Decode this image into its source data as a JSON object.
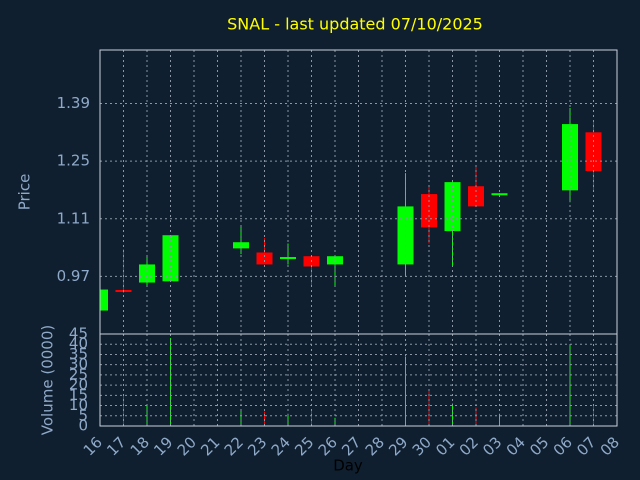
{
  "chart_data": {
    "type": "candlestick",
    "title": "SNAL - last updated 07/10/2025",
    "ylabel": "Price",
    "xlabel": "Day",
    "categories": [
      "16",
      "17",
      "18",
      "19",
      "20",
      "21",
      "22",
      "23",
      "24",
      "25",
      "26",
      "27",
      "28",
      "29",
      "30",
      "01",
      "02",
      "03",
      "04",
      "05",
      "06",
      "07",
      "08"
    ],
    "open": [
      0.887,
      0.937,
      0.955,
      0.958,
      null,
      null,
      1.038,
      1.028,
      1.014,
      1.019,
      0.999,
      null,
      null,
      0.999,
      1.17,
      1.08,
      1.189,
      1.168,
      null,
      null,
      1.179,
      1.32,
      null
    ],
    "high": [
      0.94,
      1.036,
      1.019,
      1.07,
      null,
      null,
      1.094,
      1.063,
      1.05,
      1.019,
      1.019,
      null,
      null,
      1.221,
      1.189,
      1.199,
      1.238,
      1.172,
      null,
      null,
      1.379,
      1.345,
      null
    ],
    "low": [
      0.885,
      0.93,
      0.948,
      0.958,
      null,
      null,
      1.024,
      0.999,
      0.999,
      0.948,
      0.948,
      null,
      null,
      0.97,
      1.05,
      0.994,
      1.14,
      1.165,
      null,
      null,
      1.15,
      1.179,
      null
    ],
    "close": [
      0.938,
      0.932,
      0.999,
      1.07,
      null,
      null,
      1.053,
      0.999,
      1.017,
      0.994,
      1.019,
      null,
      null,
      1.14,
      1.089,
      1.199,
      1.14,
      1.172,
      null,
      null,
      1.34,
      1.226,
      null
    ],
    "up_color": "#00ff00",
    "down_color": "#ff0000",
    "ylim": [
      0.83,
      1.52
    ],
    "yticks": [
      0.97,
      1.11,
      1.25,
      1.39
    ],
    "grid": true,
    "volume": {
      "ylabel": "Volume (0000)",
      "values": [
        0,
        15,
        10,
        43,
        null,
        null,
        8,
        7,
        6,
        8,
        4,
        null,
        null,
        34,
        18,
        11,
        9,
        6,
        null,
        null,
        40,
        10,
        null
      ],
      "ylim": [
        0,
        45
      ],
      "yticks": [
        0,
        5,
        10,
        15,
        20,
        25,
        30,
        35,
        40,
        45
      ]
    }
  }
}
